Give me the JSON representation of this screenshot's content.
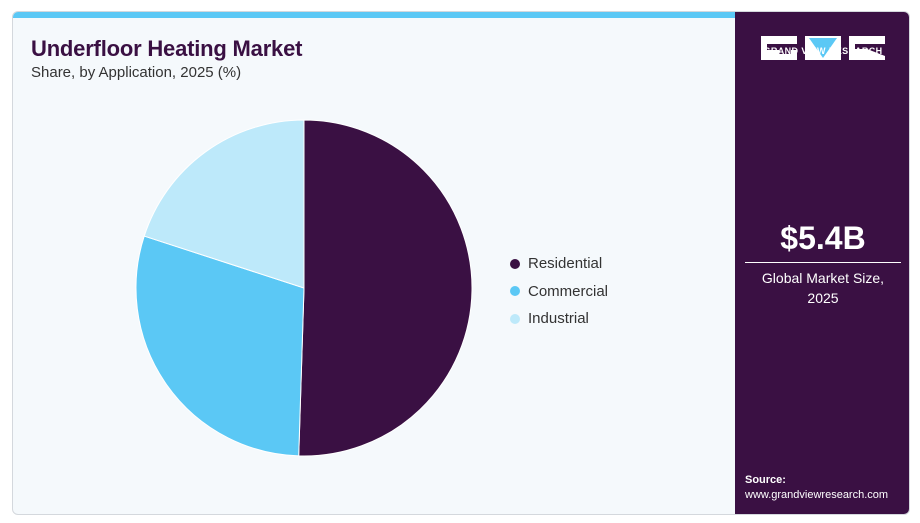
{
  "title": "Underfloor Heating Market",
  "subtitle": "Share, by Application, 2025 (%)",
  "chart_data": {
    "type": "pie",
    "categories": [
      "Residential",
      "Commercial",
      "Industrial"
    ],
    "values": [
      50.5,
      29.5,
      20.0
    ],
    "colors": [
      "#3a1043",
      "#5bc8f5",
      "#bde9fa"
    ],
    "legend_position": "right"
  },
  "sidebar": {
    "brand": "GRAND VIEW RESEARCH",
    "market_size_value": "$5.4B",
    "market_size_label": "Global Market Size, 2025",
    "source_label": "Source:",
    "source_url": "www.grandviewresearch.com"
  }
}
